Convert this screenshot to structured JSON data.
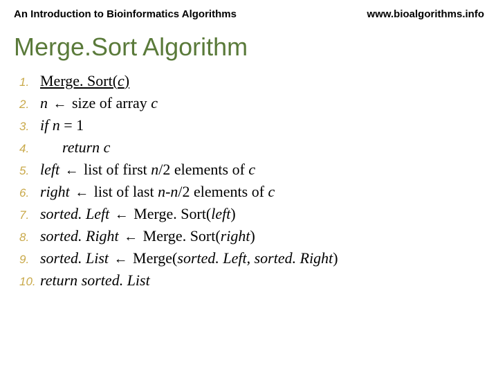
{
  "header": {
    "left": "An Introduction to Bioinformatics Algorithms",
    "right": "www.bioalgorithms.info"
  },
  "title": "Merge.Sort Algorithm",
  "colors": {
    "title_color": "#5a7a3a",
    "number_color": "#c9a94a",
    "text_color": "#000000",
    "background": "#ffffff"
  },
  "typography": {
    "header_fontsize": 15,
    "title_fontsize": 36,
    "line_fontsize": 22,
    "number_fontsize": 17
  },
  "lines": {
    "n1": "1.",
    "n2": "2.",
    "n3": "3.",
    "n4": "4.",
    "n5": "5.",
    "n6": "6.",
    "n7": "7.",
    "n8": "8.",
    "n9": "9.",
    "n10": "10.",
    "l1_a": "Merge. Sort(",
    "l1_b": "c",
    "l1_c": ")",
    "l2_a": "n",
    "l2_b": " size of array ",
    "l2_c": "c",
    "l3_a": "if n",
    "l3_b": " = 1",
    "l4_a": "return c",
    "l5_a": "left",
    "l5_b": " list of first ",
    "l5_c": "n",
    "l5_d": "/2 elements of ",
    "l5_e": "c",
    "l6_a": "right",
    "l6_b": "  list of last ",
    "l6_c": "n-n",
    "l6_d": "/2 elements of ",
    "l6_e": "c",
    "l7_a": "sorted. Left",
    "l7_b": "  Merge. Sort(",
    "l7_c": "left",
    "l7_d": ")",
    "l8_a": "sorted. Right",
    "l8_b": " Merge. Sort(",
    "l8_c": "right",
    "l8_d": ")",
    "l9_a": "sorted. List",
    "l9_b": " Merge(",
    "l9_c": "sorted. Left",
    "l9_d": ", ",
    "l9_e": "sorted. Right",
    "l9_f": ")",
    "l10_a": "return ",
    "l10_b": "sorted. List",
    "arrow": "←"
  }
}
